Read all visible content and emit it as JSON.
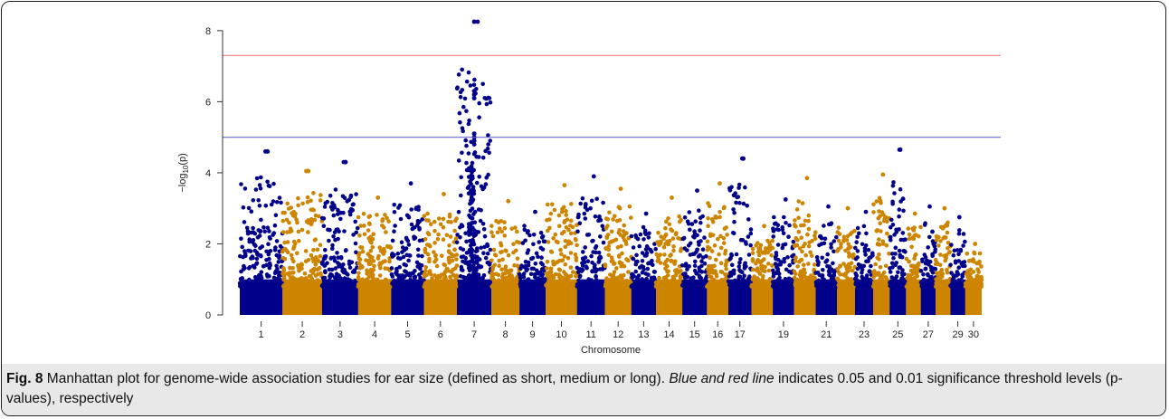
{
  "chart_data": {
    "type": "scatter",
    "subtype": "manhattan",
    "title": "",
    "xlabel": "Chromosome",
    "ylabel_parts": {
      "prefix": "−log",
      "sub": "10",
      "suffix": "(p)"
    },
    "ylim": [
      0,
      8.2
    ],
    "yticks": [
      0,
      2,
      4,
      6,
      8
    ],
    "grid": false,
    "colors": {
      "odd": "#00008b",
      "even": "#cd8500"
    },
    "chromosome_labels": [
      "1",
      "2",
      "3",
      "4",
      "5",
      "6",
      "7",
      "8",
      "9",
      "10",
      "11",
      "12",
      "13",
      "14",
      "15",
      "16",
      "17",
      "19",
      "21",
      "23",
      "25",
      "27",
      "29",
      "30"
    ],
    "chromosomes": [
      {
        "chr": 1,
        "max": 4.6
      },
      {
        "chr": 2,
        "max": 4.05
      },
      {
        "chr": 3,
        "max": 4.3
      },
      {
        "chr": 4,
        "max": 3.3
      },
      {
        "chr": 5,
        "max": 3.7
      },
      {
        "chr": 6,
        "max": 3.4
      },
      {
        "chr": 7,
        "max": 8.25
      },
      {
        "chr": 8,
        "max": 3.2
      },
      {
        "chr": 9,
        "max": 2.9
      },
      {
        "chr": 10,
        "max": 3.65
      },
      {
        "chr": 11,
        "max": 3.9
      },
      {
        "chr": 12,
        "max": 3.55
      },
      {
        "chr": 13,
        "max": 2.85
      },
      {
        "chr": 14,
        "max": 3.3
      },
      {
        "chr": 15,
        "max": 3.5
      },
      {
        "chr": 16,
        "max": 3.7
      },
      {
        "chr": 17,
        "max": 4.4
      },
      {
        "chr": 18,
        "max": 2.5
      },
      {
        "chr": 19,
        "max": 3.25
      },
      {
        "chr": 20,
        "max": 3.85
      },
      {
        "chr": 21,
        "max": 3.05
      },
      {
        "chr": 22,
        "max": 3.0
      },
      {
        "chr": 23,
        "max": 2.9
      },
      {
        "chr": 24,
        "max": 3.95
      },
      {
        "chr": 25,
        "max": 4.65
      },
      {
        "chr": 26,
        "max": 2.85
      },
      {
        "chr": 27,
        "max": 3.05
      },
      {
        "chr": 28,
        "max": 3.0
      },
      {
        "chr": 29,
        "max": 2.75
      },
      {
        "chr": 30,
        "max": 2.0
      }
    ],
    "highlighted_points": [
      {
        "chr": 7,
        "y": 8.25
      },
      {
        "chr": 7,
        "y": 6.3
      },
      {
        "chr": 7,
        "y": 6.2
      },
      {
        "chr": 7,
        "y": 6.1
      },
      {
        "chr": 7,
        "y": 5.1
      },
      {
        "chr": 7,
        "y": 5.0
      },
      {
        "chr": 7,
        "y": 4.9
      },
      {
        "chr": 7,
        "y": 4.8
      },
      {
        "chr": 25,
        "y": 4.65
      },
      {
        "chr": 1,
        "y": 4.6
      },
      {
        "chr": 17,
        "y": 4.4
      },
      {
        "chr": 3,
        "y": 4.3
      },
      {
        "chr": 2,
        "y": 4.05
      }
    ],
    "threshold_lines": [
      {
        "y": 5.0,
        "color": "#6a6ad4",
        "meaning": "0.05"
      },
      {
        "y": 7.3,
        "color": "#f08080",
        "meaning": "0.01"
      }
    ]
  },
  "caption": {
    "label": "Fig. 8",
    "text1": " Manhattan plot for genome-wide association studies for ear size (defined as short, medium or long). ",
    "emphasis": "Blue and red line",
    "text2": " indicates 0.05 and 0.01 significance threshold levels (p-values), respectively"
  }
}
